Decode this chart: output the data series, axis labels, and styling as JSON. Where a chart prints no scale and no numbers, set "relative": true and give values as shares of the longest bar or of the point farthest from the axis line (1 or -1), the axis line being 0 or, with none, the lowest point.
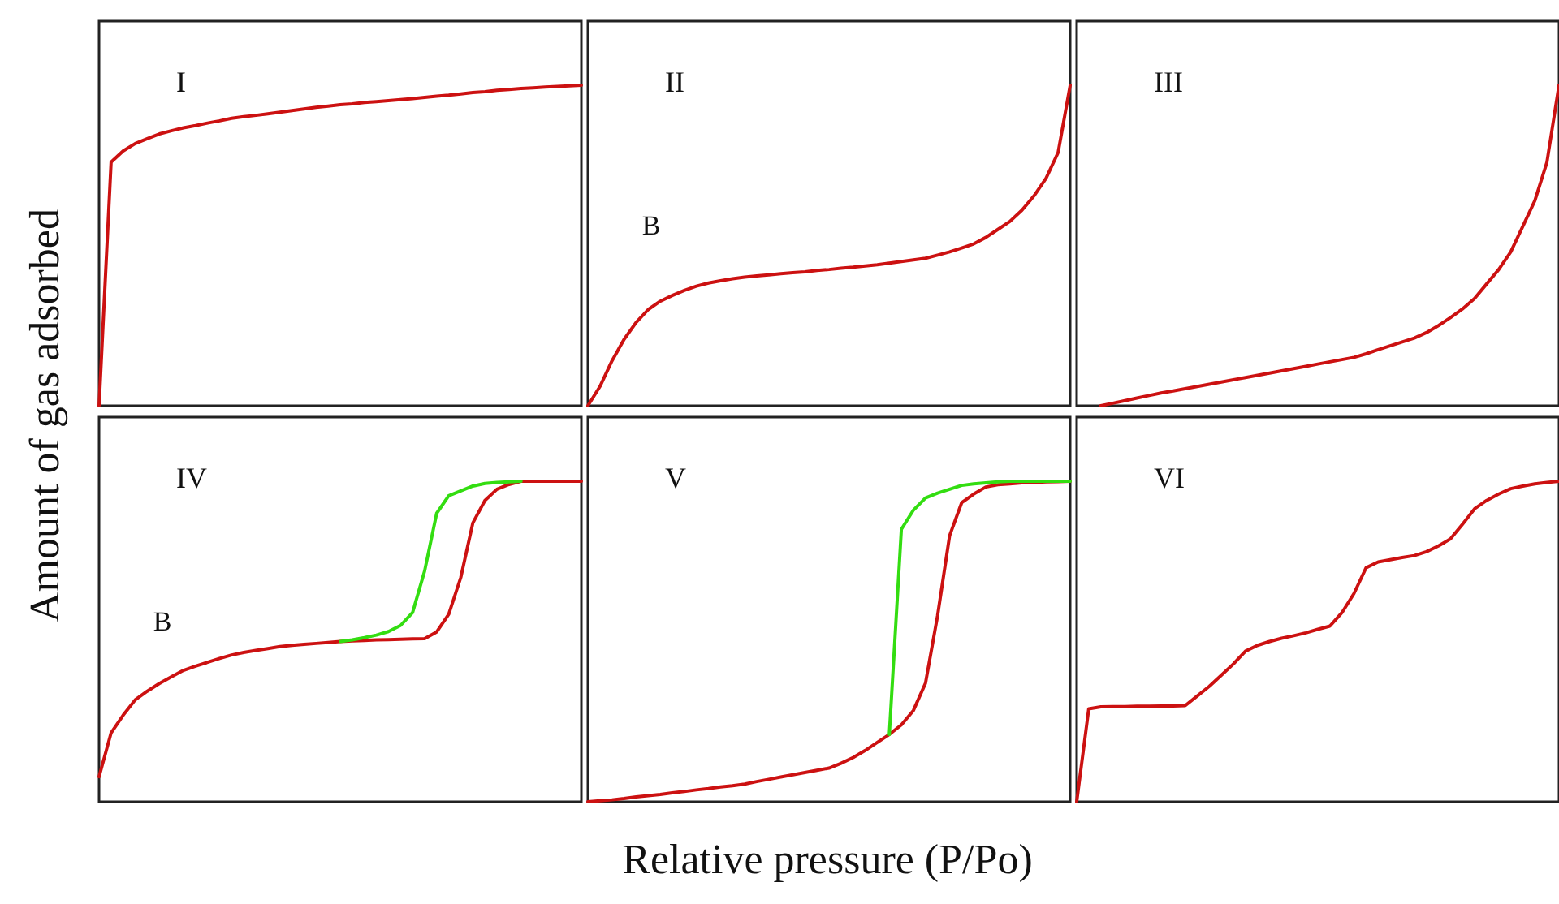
{
  "chart_data": [
    {
      "type": "line",
      "title": "I",
      "ylabel": "Amount of gas adsorbed",
      "relative": true,
      "marker": "none",
      "line_style": "solid",
      "categories": [
        null,
        null,
        null,
        null,
        null,
        null,
        null,
        null,
        null,
        null,
        null,
        null,
        null,
        null,
        null,
        null,
        null,
        null,
        null,
        null,
        null,
        null,
        null,
        null,
        null,
        null,
        null,
        null,
        null,
        null,
        null,
        null,
        null,
        null,
        null,
        null,
        null,
        null,
        null,
        null,
        null
      ],
      "series": [
        {
          "color": "#cc1111",
          "values": [
            0,
            0.76,
            0.795,
            0.818,
            0.833,
            0.848,
            0.858,
            0.867,
            0.874,
            0.882,
            0.889,
            0.897,
            0.902,
            0.906,
            0.911,
            0.916,
            0.921,
            0.926,
            0.931,
            0.935,
            0.939,
            0.942,
            0.946,
            0.949,
            0.952,
            0.955,
            0.958,
            0.962,
            0.966,
            0.969,
            0.973,
            0.977,
            0.98,
            0.984,
            0.987,
            0.99,
            0.992,
            0.994,
            0.996,
            0.998,
            1
          ]
        }
      ]
    },
    {
      "type": "line",
      "title": "II",
      "relative": true,
      "marker": "none",
      "line_style": "solid",
      "annotations": [
        "B"
      ],
      "categories": [
        null,
        null,
        null,
        null,
        null,
        null,
        null,
        null,
        null,
        null,
        null,
        null,
        null,
        null,
        null,
        null,
        null,
        null,
        null,
        null,
        null,
        null,
        null,
        null,
        null,
        null,
        null,
        null,
        null,
        null,
        null,
        null,
        null,
        null,
        null,
        null,
        null,
        null,
        null,
        null,
        null
      ],
      "series": [
        {
          "color": "#cc1111",
          "values": [
            0,
            0.06,
            0.14,
            0.207,
            0.26,
            0.3,
            0.326,
            0.344,
            0.36,
            0.373,
            0.383,
            0.39,
            0.396,
            0.401,
            0.405,
            0.408,
            0.412,
            0.415,
            0.418,
            0.422,
            0.425,
            0.429,
            0.432,
            0.436,
            0.44,
            0.445,
            0.45,
            0.455,
            0.46,
            0.47,
            0.48,
            0.492,
            0.505,
            0.525,
            0.55,
            0.575,
            0.61,
            0.655,
            0.71,
            0.79,
            1
          ]
        }
      ]
    },
    {
      "type": "line",
      "title": "III",
      "relative": true,
      "marker": "none",
      "line_style": "solid",
      "categories": [
        null,
        null,
        null,
        null,
        null,
        null,
        null,
        null,
        null,
        null,
        null,
        null,
        null,
        null,
        null,
        null,
        null,
        null,
        null,
        null,
        null,
        null,
        null,
        null,
        null,
        null,
        null,
        null,
        null,
        null,
        null,
        null,
        null,
        null,
        null,
        null,
        null,
        null,
        null,
        null,
        null
      ],
      "series": [
        {
          "color": "#cc1111",
          "values": [
            null,
            null,
            0,
            0.008,
            0.016,
            0.024,
            0.032,
            0.04,
            0.046,
            0.053,
            0.06,
            0.067,
            0.074,
            0.081,
            0.088,
            0.095,
            0.102,
            0.109,
            0.116,
            0.123,
            0.13,
            0.137,
            0.144,
            0.151,
            0.162,
            0.175,
            0.187,
            0.199,
            0.211,
            0.228,
            0.25,
            0.275,
            0.302,
            0.335,
            0.38,
            0.425,
            0.48,
            0.56,
            0.64,
            0.76,
            1
          ]
        }
      ]
    },
    {
      "type": "line",
      "title": "IV",
      "relative": true,
      "marker": "none",
      "line_style": "solid",
      "annotations": [
        "B"
      ],
      "categories": [
        null,
        null,
        null,
        null,
        null,
        null,
        null,
        null,
        null,
        null,
        null,
        null,
        null,
        null,
        null,
        null,
        null,
        null,
        null,
        null,
        null,
        null,
        null,
        null,
        null,
        null,
        null,
        null,
        null,
        null,
        null,
        null,
        null,
        null,
        null,
        null,
        null,
        null,
        null,
        null,
        null
      ],
      "series": [
        {
          "color": "#cc1111",
          "values": [
            0.078,
            0.215,
            0.27,
            0.318,
            0.345,
            0.369,
            0.39,
            0.41,
            0.423,
            0.435,
            0.447,
            0.458,
            0.466,
            0.472,
            0.478,
            0.484,
            0.488,
            0.491,
            0.494,
            0.497,
            0.5,
            0.502,
            0.503,
            0.505,
            0.506,
            0.507,
            0.508,
            0.509,
            0.53,
            0.585,
            0.7,
            0.87,
            0.94,
            0.975,
            0.99,
            1,
            1,
            1,
            1,
            1,
            1
          ]
        },
        {
          "color": "#33dd11",
          "values": [
            null,
            null,
            null,
            null,
            null,
            null,
            null,
            null,
            null,
            null,
            null,
            null,
            null,
            null,
            null,
            null,
            null,
            null,
            null,
            null,
            0.5,
            0.505,
            0.512,
            0.52,
            0.531,
            0.55,
            0.59,
            0.72,
            0.9,
            0.955,
            0.97,
            0.985,
            0.993,
            0.996,
            0.998,
            1,
            null,
            null,
            null,
            null,
            null
          ]
        }
      ]
    },
    {
      "type": "line",
      "title": "V",
      "xlabel": "Relative pressure (P/Po)",
      "relative": true,
      "marker": "none",
      "line_style": "solid",
      "categories": [
        null,
        null,
        null,
        null,
        null,
        null,
        null,
        null,
        null,
        null,
        null,
        null,
        null,
        null,
        null,
        null,
        null,
        null,
        null,
        null,
        null,
        null,
        null,
        null,
        null,
        null,
        null,
        null,
        null,
        null,
        null,
        null,
        null,
        null,
        null,
        null,
        null,
        null,
        null,
        null,
        null
      ],
      "series": [
        {
          "color": "#cc1111",
          "values": [
            0,
            0.003,
            0.006,
            0.01,
            0.015,
            0.019,
            0.023,
            0.028,
            0.032,
            0.037,
            0.041,
            0.046,
            0.05,
            0.055,
            0.063,
            0.07,
            0.077,
            0.084,
            0.091,
            0.098,
            0.105,
            0.12,
            0.138,
            0.16,
            0.185,
            0.21,
            0.24,
            0.285,
            0.37,
            0.58,
            0.83,
            0.933,
            0.96,
            0.982,
            0.989,
            0.992,
            0.995,
            0.996,
            0.998,
            0.999,
            1
          ]
        },
        {
          "color": "#33dd11",
          "values": [
            null,
            null,
            null,
            null,
            null,
            null,
            null,
            null,
            null,
            null,
            null,
            null,
            null,
            null,
            null,
            null,
            null,
            null,
            null,
            null,
            null,
            null,
            null,
            null,
            null,
            0.21,
            0.85,
            0.91,
            0.948,
            0.963,
            0.975,
            0.987,
            0.992,
            0.995,
            0.998,
            1,
            1,
            1,
            1,
            1,
            1
          ]
        }
      ]
    },
    {
      "type": "line",
      "title": "VI",
      "relative": true,
      "marker": "none",
      "line_style": "solid",
      "categories": [
        null,
        null,
        null,
        null,
        null,
        null,
        null,
        null,
        null,
        null,
        null,
        null,
        null,
        null,
        null,
        null,
        null,
        null,
        null,
        null,
        null,
        null,
        null,
        null,
        null,
        null,
        null,
        null,
        null,
        null,
        null,
        null,
        null,
        null,
        null,
        null,
        null,
        null,
        null,
        null,
        null
      ],
      "series": [
        {
          "color": "#cc1111",
          "values": [
            0,
            0.29,
            0.296,
            0.297,
            0.297,
            0.298,
            0.298,
            0.299,
            0.299,
            0.3,
            0.33,
            0.36,
            0.395,
            0.43,
            0.47,
            0.488,
            0.5,
            0.51,
            0.518,
            0.527,
            0.538,
            0.548,
            0.59,
            0.65,
            0.73,
            0.748,
            0.755,
            0.762,
            0.768,
            0.78,
            0.798,
            0.82,
            0.866,
            0.914,
            0.94,
            0.96,
            0.977,
            0.985,
            0.992,
            0.996,
            1
          ]
        }
      ]
    }
  ]
}
